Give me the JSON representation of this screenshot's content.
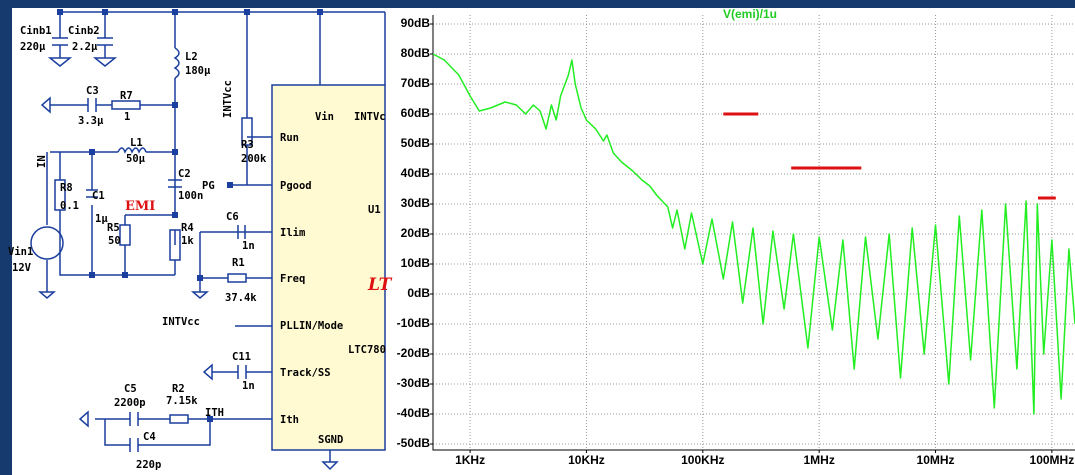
{
  "schematic": {
    "components": [
      {
        "ref": "Cinb1",
        "value": "220µ"
      },
      {
        "ref": "Cinb2",
        "value": "2.2µ"
      },
      {
        "ref": "L2",
        "value": "180µ"
      },
      {
        "ref": "C3",
        "value": "3.3µ"
      },
      {
        "ref": "R7",
        "value": "1"
      },
      {
        "ref": "L1",
        "value": "50µ"
      },
      {
        "ref": "R8",
        "value": "0.1"
      },
      {
        "ref": "C1",
        "value": "1µ"
      },
      {
        "ref": "C2",
        "value": "100n"
      },
      {
        "ref": "R5",
        "value": "50"
      },
      {
        "ref": "R4",
        "value": "1k"
      },
      {
        "ref": "Vin1",
        "value": "12V"
      },
      {
        "ref": "R3",
        "value": "200k"
      },
      {
        "ref": "C6",
        "value": "1n"
      },
      {
        "ref": "R1",
        "value": "37.4k"
      },
      {
        "ref": "C11",
        "value": "1n"
      },
      {
        "ref": "C5",
        "value": "2200p"
      },
      {
        "ref": "R2",
        "value": "7.15k"
      },
      {
        "ref": "C4",
        "value": "220p"
      }
    ],
    "net_labels": [
      "INTVcc",
      "IN",
      "PG",
      "EMI",
      "INTVcc",
      "ITH"
    ],
    "ic": {
      "ref": "U1",
      "part": "LTC780",
      "logo": "LT",
      "pins": [
        "Vin",
        "INTVc",
        "Run",
        "Pgood",
        "Ilim",
        "Freq",
        "PLLIN/Mode",
        "Track/SS",
        "Ith",
        "SGND"
      ]
    }
  },
  "chart_data": {
    "type": "line",
    "title": "V(emi)/1u",
    "log_x": true,
    "grid": true,
    "xlim": [
      480,
      158000000
    ],
    "ylim": [
      -52,
      93
    ],
    "xticks": [
      {
        "value": 1000,
        "label": "1KHz"
      },
      {
        "value": 10000,
        "label": "10KHz"
      },
      {
        "value": 100000,
        "label": "100KHz"
      },
      {
        "value": 1000000,
        "label": "1MHz"
      },
      {
        "value": 10000000,
        "label": "10MHz"
      },
      {
        "value": 100000000,
        "label": "100MHz"
      }
    ],
    "yticks": [
      {
        "value": 90,
        "label": "90dB"
      },
      {
        "value": 80,
        "label": "80dB"
      },
      {
        "value": 70,
        "label": "70dB"
      },
      {
        "value": 60,
        "label": "60dB"
      },
      {
        "value": 50,
        "label": "50dB"
      },
      {
        "value": 40,
        "label": "40dB"
      },
      {
        "value": 30,
        "label": "30dB"
      },
      {
        "value": 20,
        "label": "20dB"
      },
      {
        "value": 10,
        "label": "10dB"
      },
      {
        "value": 0,
        "label": "0dB"
      },
      {
        "value": -10,
        "label": "-10dB"
      },
      {
        "value": -20,
        "label": "-20dB"
      },
      {
        "value": -30,
        "label": "-30dB"
      },
      {
        "value": -40,
        "label": "-40dB"
      },
      {
        "value": -50,
        "label": "-50dB"
      }
    ],
    "series": [
      {
        "color": "#22ee22",
        "x": [
          480,
          600,
          800,
          1000,
          1200,
          1500,
          2000,
          2500,
          3000,
          3500,
          4000,
          4500,
          5000,
          5500,
          6000,
          7000,
          7500,
          8000,
          9000,
          10000,
          12000,
          14000,
          15000,
          17000,
          20000,
          25000,
          30000,
          35000,
          40000,
          50000,
          55000,
          60000,
          70000,
          80000,
          100000,
          120000,
          150000,
          180000,
          220000,
          270000,
          330000,
          400000,
          500000,
          600000,
          800000,
          1000000,
          1300000,
          1600000,
          2000000,
          2500000,
          3200000,
          4000000,
          5000000,
          6300000,
          8000000,
          10000000,
          13000000,
          16000000,
          20000000,
          25000000,
          32000000,
          40000000,
          50000000,
          60000000,
          70000000,
          75000000,
          85000000,
          100000000,
          120000000,
          140000000,
          158000000
        ],
        "values": [
          80,
          78,
          73,
          66,
          61,
          62,
          64,
          63,
          60,
          63,
          61,
          55,
          63,
          58,
          66,
          73,
          78,
          70,
          62,
          58,
          55,
          51,
          53,
          47,
          44,
          41,
          38,
          36,
          33,
          29,
          22,
          28,
          15,
          27,
          10,
          25,
          5,
          24,
          -3,
          22,
          -10,
          21,
          -5,
          20,
          -18,
          19,
          -12,
          18,
          -25,
          19,
          -15,
          20,
          -28,
          22,
          -20,
          23,
          -30,
          26,
          -22,
          28,
          -38,
          30,
          -25,
          31,
          -40,
          30,
          -20,
          18,
          -35,
          15,
          -10
        ]
      }
    ],
    "limits": [
      {
        "color": "#dd1111",
        "x": [
          150000,
          300000
        ],
        "values": [
          60,
          60
        ]
      },
      {
        "color": "#dd1111",
        "x": [
          575000,
          2300000
        ],
        "values": [
          42,
          42
        ]
      },
      {
        "color": "#dd1111",
        "x": [
          76000000,
          108000000
        ],
        "values": [
          32,
          32
        ]
      }
    ]
  }
}
